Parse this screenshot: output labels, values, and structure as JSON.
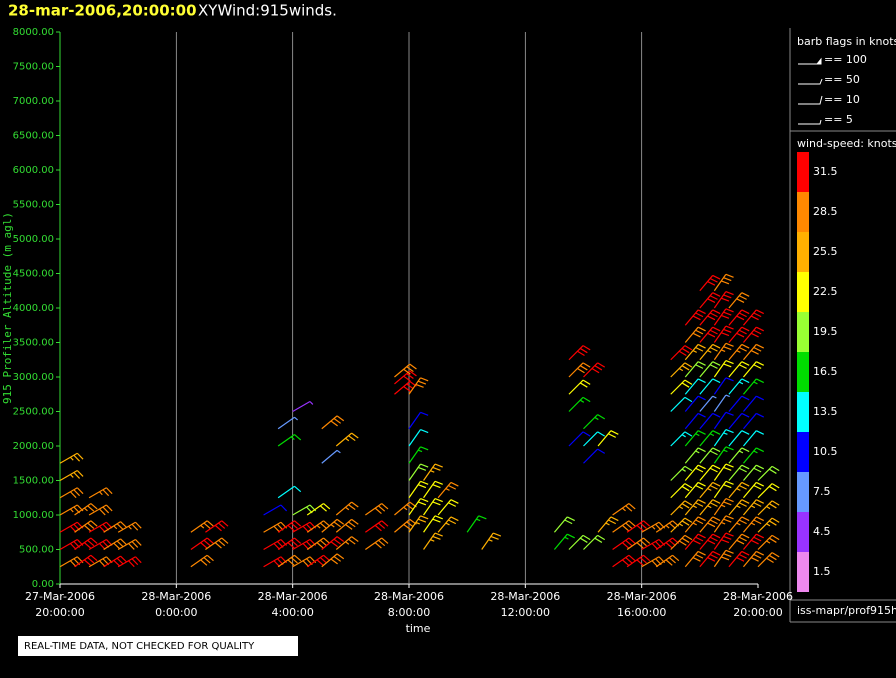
{
  "chart_data": {
    "type": "windbarb",
    "title": "28-mar-2006,20:00:00",
    "subtitle": "XYWind:915winds.",
    "ylabel": "915 Profiler Altitude (m agl)",
    "xlabel": "time",
    "note": "REAL-TIME DATA, NOT CHECKED FOR QUALITY",
    "source": "iss-mapr/prof915h",
    "ylim": [
      0,
      8000
    ],
    "yticks": [
      {
        "value": 0,
        "label": "0.00"
      },
      {
        "value": 500,
        "label": "500.00"
      },
      {
        "value": 1000,
        "label": "1000.00"
      },
      {
        "value": 1500,
        "label": "1500.00"
      },
      {
        "value": 2000,
        "label": "2000.00"
      },
      {
        "value": 2500,
        "label": "2500.00"
      },
      {
        "value": 3000,
        "label": "3000.00"
      },
      {
        "value": 3500,
        "label": "3500.00"
      },
      {
        "value": 4000,
        "label": "4000.00"
      },
      {
        "value": 4500,
        "label": "4500.00"
      },
      {
        "value": 5000,
        "label": "5000.00"
      },
      {
        "value": 5500,
        "label": "5500.00"
      },
      {
        "value": 6000,
        "label": "6000.00"
      },
      {
        "value": 6500,
        "label": "6500.00"
      },
      {
        "value": 7000,
        "label": "7000.00"
      },
      {
        "value": 7500,
        "label": "7500.00"
      },
      {
        "value": 8000,
        "label": "8000.00"
      }
    ],
    "xlim": [
      "27-Mar-2006 20:00:00",
      "28-Mar-2006 20:00:00"
    ],
    "xticks": [
      {
        "value": "27-Mar-2006 20:00:00",
        "label": [
          "27-Mar-2006",
          "20:00:00"
        ]
      },
      {
        "value": "28-Mar-2006 00:00:00",
        "label": [
          "28-Mar-2006",
          "0:00:00"
        ]
      },
      {
        "value": "28-Mar-2006 04:00:00",
        "label": [
          "28-Mar-2006",
          "4:00:00"
        ]
      },
      {
        "value": "28-Mar-2006 08:00:00",
        "label": [
          "28-Mar-2006",
          "8:00:00"
        ]
      },
      {
        "value": "28-Mar-2006 12:00:00",
        "label": [
          "28-Mar-2006",
          "12:00:00"
        ]
      },
      {
        "value": "28-Mar-2006 16:00:00",
        "label": [
          "28-Mar-2006",
          "16:00:00"
        ]
      },
      {
        "value": "28-Mar-2006 20:00:00",
        "label": [
          "28-Mar-2006",
          "20:00:00"
        ]
      }
    ],
    "grid": true,
    "barb_legend": {
      "title": "barb flags in knots",
      "items": [
        "== 100",
        "== 50",
        "== 10",
        "== 5"
      ]
    },
    "colorscale": {
      "title": "wind-speed: knots",
      "levels": [
        1.5,
        4.5,
        7.5,
        10.5,
        13.5,
        16.5,
        19.5,
        22.5,
        25.5,
        28.5,
        31.5
      ],
      "colors": [
        "#ee88ee",
        "#9933ff",
        "#6699ff",
        "#0000ff",
        "#00ffff",
        "#00dd00",
        "#99ff33",
        "#ffff00",
        "#ffb000",
        "#ff8800",
        "#ff0000"
      ]
    },
    "profiles": [
      {
        "time": "27-Mar-2006 20:00:00",
        "direction": 240,
        "altitudes": [
          250,
          500,
          750,
          1000,
          1250,
          1500,
          1750
        ],
        "speeds": [
          30,
          32,
          31,
          29,
          30,
          27,
          25
        ]
      },
      {
        "time": "27-Mar-2006 20:30:00",
        "direction": 235,
        "altitudes": [
          250,
          500,
          750,
          1000
        ],
        "speeds": [
          31,
          33,
          30,
          29
        ]
      },
      {
        "time": "27-Mar-2006 21:00:00",
        "direction": 240,
        "altitudes": [
          250,
          500,
          750,
          1000,
          1250
        ],
        "speeds": [
          30,
          32,
          31,
          30,
          28
        ]
      },
      {
        "time": "27-Mar-2006 21:30:00",
        "direction": 238,
        "altitudes": [
          250,
          500,
          750
        ],
        "speeds": [
          32,
          30,
          29
        ]
      },
      {
        "time": "27-Mar-2006 22:00:00",
        "direction": 240,
        "altitudes": [
          250,
          500,
          750
        ],
        "speeds": [
          31,
          30,
          28
        ]
      },
      {
        "time": "28-Mar-2006 00:30:00",
        "direction": 235,
        "altitudes": [
          250,
          500,
          750
        ],
        "speeds": [
          30,
          31,
          29
        ]
      },
      {
        "time": "28-Mar-2006 01:00:00",
        "direction": 235,
        "altitudes": [
          500,
          750
        ],
        "speeds": [
          30,
          31
        ]
      },
      {
        "time": "28-Mar-2006 03:00:00",
        "direction": 240,
        "altitudes": [
          250,
          500,
          750,
          1000
        ],
        "speeds": [
          31,
          32,
          30,
          12
        ]
      },
      {
        "time": "28-Mar-2006 03:30:00",
        "direction": 235,
        "altitudes": [
          250,
          500,
          750,
          1250,
          2000,
          2250
        ],
        "speeds": [
          30,
          33,
          31,
          14,
          17,
          8
        ]
      },
      {
        "time": "28-Mar-2006 04:00:00",
        "direction": 240,
        "altitudes": [
          250,
          500,
          750,
          1000,
          2500
        ],
        "speeds": [
          30,
          32,
          31,
          20,
          6
        ]
      },
      {
        "time": "28-Mar-2006 04:30:00",
        "direction": 235,
        "altitudes": [
          250,
          500,
          750,
          1000
        ],
        "speeds": [
          31,
          30,
          28,
          24
        ]
      },
      {
        "time": "28-Mar-2006 05:00:00",
        "direction": 230,
        "altitudes": [
          250,
          500,
          750,
          1750,
          2250
        ],
        "speeds": [
          30,
          31,
          29,
          9,
          30
        ]
      },
      {
        "time": "28-Mar-2006 05:30:00",
        "direction": 230,
        "altitudes": [
          500,
          750,
          1000,
          2000
        ],
        "speeds": [
          28,
          30,
          29,
          26
        ]
      },
      {
        "time": "28-Mar-2006 06:30:00",
        "direction": 235,
        "altitudes": [
          500,
          750,
          1000
        ],
        "speeds": [
          30,
          31,
          30
        ]
      },
      {
        "time": "28-Mar-2006 07:30:00",
        "direction": 230,
        "altitudes": [
          750,
          1000,
          2750,
          2900,
          3000
        ],
        "speeds": [
          30,
          29,
          31,
          32,
          30
        ]
      },
      {
        "time": "28-Mar-2006 08:00:00",
        "direction": 215,
        "altitudes": [
          750,
          1000,
          1250,
          1500,
          1750,
          2000,
          2250,
          2750
        ],
        "speeds": [
          26,
          24,
          22,
          20,
          18,
          13,
          12,
          30
        ]
      },
      {
        "time": "28-Mar-2006 08:30:00",
        "direction": 215,
        "altitudes": [
          500,
          750,
          1000,
          1250,
          1500
        ],
        "speeds": [
          25,
          23,
          22,
          24,
          27
        ]
      },
      {
        "time": "28-Mar-2006 09:00:00",
        "direction": 220,
        "altitudes": [
          750,
          1000,
          1250
        ],
        "speeds": [
          26,
          24,
          28
        ]
      },
      {
        "time": "28-Mar-2006 10:00:00",
        "direction": 215,
        "altitudes": [
          750
        ],
        "speeds": [
          18
        ]
      },
      {
        "time": "28-Mar-2006 10:30:00",
        "direction": 215,
        "altitudes": [
          500
        ],
        "speeds": [
          27
        ]
      },
      {
        "time": "28-Mar-2006 13:00:00",
        "direction": 220,
        "altitudes": [
          500,
          750
        ],
        "speeds": [
          18,
          20
        ]
      },
      {
        "time": "28-Mar-2006 13:30:00",
        "direction": 225,
        "altitudes": [
          500,
          2000,
          2500,
          2750,
          3000,
          3250
        ],
        "speeds": [
          21,
          12,
          18,
          22,
          30,
          31
        ]
      },
      {
        "time": "28-Mar-2006 14:00:00",
        "direction": 225,
        "altitudes": [
          500,
          1750,
          2000,
          2250,
          3000
        ],
        "speeds": [
          20,
          10,
          13,
          16,
          31
        ]
      },
      {
        "time": "28-Mar-2006 14:30:00",
        "direction": 220,
        "altitudes": [
          750,
          2000
        ],
        "speeds": [
          26,
          22
        ]
      },
      {
        "time": "28-Mar-2006 15:00:00",
        "direction": 235,
        "altitudes": [
          250,
          500,
          750,
          1000
        ],
        "speeds": [
          31,
          32,
          30,
          29
        ]
      },
      {
        "time": "28-Mar-2006 15:30:00",
        "direction": 235,
        "altitudes": [
          250,
          500,
          750
        ],
        "speeds": [
          32,
          30,
          31
        ]
      },
      {
        "time": "28-Mar-2006 16:00:00",
        "direction": 240,
        "altitudes": [
          250,
          500,
          750
        ],
        "speeds": [
          30,
          31,
          29
        ]
      },
      {
        "time": "28-Mar-2006 16:30:00",
        "direction": 235,
        "altitudes": [
          250,
          500,
          750
        ],
        "speeds": [
          30,
          31,
          29
        ]
      },
      {
        "time": "28-Mar-2006 17:00:00",
        "direction": 225,
        "altitudes": [
          500,
          750,
          1000,
          1250,
          1500,
          2000,
          2500,
          2750,
          3000,
          3250
        ],
        "speeds": [
          30,
          27,
          25,
          22,
          19,
          15,
          13,
          22,
          26,
          31
        ]
      },
      {
        "time": "28-Mar-2006 17:30:00",
        "direction": 220,
        "altitudes": [
          250,
          500,
          750,
          1000,
          1250,
          1500,
          1750,
          2000,
          2250,
          2500,
          2750,
          3000,
          3250,
          3500,
          3750
        ],
        "speeds": [
          30,
          31,
          28,
          26,
          24,
          22,
          19,
          16,
          12,
          10,
          13,
          20,
          26,
          30,
          32
        ]
      },
      {
        "time": "28-Mar-2006 18:00:00",
        "direction": 220,
        "altitudes": [
          250,
          500,
          750,
          1000,
          1250,
          1500,
          1750,
          2000,
          2250,
          2500,
          2750,
          3000,
          3250,
          3500,
          3750,
          4000,
          4250
        ],
        "speeds": [
          31,
          32,
          30,
          27,
          25,
          22,
          20,
          17,
          11,
          9,
          14,
          21,
          27,
          31,
          33,
          32,
          31
        ]
      },
      {
        "time": "28-Mar-2006 18:30:00",
        "direction": 215,
        "altitudes": [
          250,
          500,
          750,
          1000,
          1250,
          1500,
          1750,
          2000,
          2250,
          2500,
          2750,
          3000,
          3250,
          3500,
          3750,
          4000,
          4250
        ],
        "speeds": [
          30,
          31,
          29,
          28,
          24,
          23,
          18,
          15,
          10,
          8,
          12,
          22,
          28,
          32,
          33,
          31,
          30
        ]
      },
      {
        "time": "28-Mar-2006 19:00:00",
        "direction": 220,
        "altitudes": [
          250,
          500,
          750,
          1000,
          1250,
          1500,
          1750,
          2000,
          2250,
          2500,
          2750,
          3000,
          3250,
          3500,
          3750,
          4000
        ],
        "speeds": [
          31,
          30,
          28,
          26,
          25,
          21,
          19,
          14,
          12,
          10,
          15,
          23,
          29,
          31,
          32,
          30
        ]
      },
      {
        "time": "28-Mar-2006 19:30:00",
        "direction": 220,
        "altitudes": [
          250,
          500,
          750,
          1000,
          1250,
          1500,
          1750,
          2000,
          2250,
          2500,
          2750,
          3000,
          3250,
          3500,
          3750
        ],
        "speeds": [
          30,
          31,
          29,
          27,
          23,
          20,
          17,
          13,
          11,
          12,
          16,
          24,
          30,
          32,
          31
        ]
      },
      {
        "time": "28-Mar-2006 20:00:00",
        "direction": 225,
        "altitudes": [
          250,
          500,
          750,
          1000,
          1250,
          1500
        ],
        "speeds": [
          30,
          28,
          27,
          25,
          23,
          21
        ]
      }
    ]
  }
}
